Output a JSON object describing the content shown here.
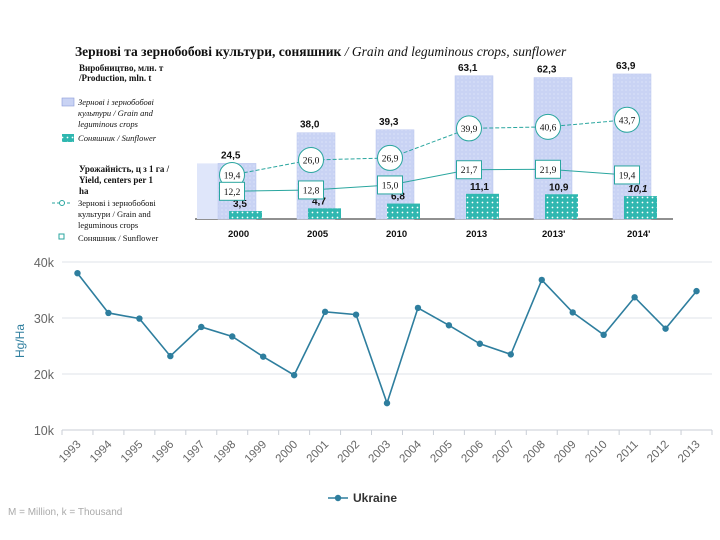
{
  "top_title": {
    "ukrainian": "Зернові та зернобобові культури, соняшник",
    "english": "/ Grain and leguminous crops, sunflower"
  },
  "chart_data": [
    {
      "type": "bar",
      "categories": [
        "2000",
        "2005",
        "2010",
        "2013",
        "2013'",
        "2014'"
      ],
      "legend_heading": "Виробництво, млн. т /Production, mln. t",
      "series": [
        {
          "name": "Зернові і зернобобові культури / Grain and leguminous crops",
          "values": [
            24.5,
            38.0,
            39.3,
            63.1,
            62.3,
            63.9
          ],
          "labels": [
            "24,5",
            "38,0",
            "39,3",
            "63,1",
            "62,3",
            "63,9"
          ],
          "color": "#c9d3f4"
        },
        {
          "name": "Соняшник / Sunflower",
          "values": [
            3.5,
            4.7,
            6.8,
            11.1,
            10.9,
            10.1
          ],
          "labels": [
            "3,5",
            "4,7",
            "6,8",
            "11,1",
            "10,9",
            "10,1"
          ],
          "color": "#2fb7b0"
        }
      ],
      "ylim": [
        0,
        66
      ]
    },
    {
      "type": "line",
      "categories": [
        "2000",
        "2005",
        "2010",
        "2013",
        "2013'",
        "2014'"
      ],
      "legend_heading": "Урожайність, ц з 1 га / Yield, centers per 1 ha",
      "series": [
        {
          "name": "Зернові і зернобобові культури / Grain and leguminous crops",
          "values": [
            19.4,
            26.0,
            26.9,
            39.9,
            40.6,
            43.7
          ],
          "labels": [
            "19,4",
            "26,0",
            "26,9",
            "39,9",
            "40,6",
            "43,7"
          ],
          "color": "#2aa69f"
        },
        {
          "name": "Соняшник / Sunflower",
          "values": [
            12.2,
            12.8,
            15.0,
            21.7,
            21.9,
            19.4
          ],
          "labels": [
            "12,2",
            "12,8",
            "15,0",
            "21,7",
            "21,9",
            "19,4"
          ],
          "color": "#2aa69f"
        }
      ],
      "ylim": [
        0,
        66
      ]
    },
    {
      "type": "line",
      "x": [
        "1993",
        "1994",
        "1995",
        "1996",
        "1997",
        "1998",
        "1999",
        "2000",
        "2001",
        "2002",
        "2003",
        "2004",
        "2005",
        "2006",
        "2007",
        "2008",
        "2009",
        "2010",
        "2011",
        "2012",
        "2013"
      ],
      "series": [
        {
          "name": "Ukraine",
          "values": [
            38000,
            30900,
            29900,
            23200,
            28400,
            26700,
            23100,
            19800,
            31100,
            30600,
            14800,
            31800,
            28700,
            25400,
            23500,
            36800,
            31000,
            27000,
            33700,
            28100,
            34800
          ],
          "color": "#2e7e9e"
        }
      ],
      "ylabel": "Hg/Ha",
      "yticks": [
        "10k",
        "20k",
        "30k",
        "40k"
      ],
      "ylim": [
        10000,
        40000
      ],
      "legend_placement": "bottom-center",
      "grid": true
    }
  ],
  "footnote": "M = Million, k = Thousand",
  "colors": {
    "bar_grain": "#c9d3f4",
    "bar_sunflower": "#2fb7b0",
    "line_teal": "#2aa69f",
    "line_blue": "#2e7e9e",
    "grid": "#dfe3e8"
  }
}
